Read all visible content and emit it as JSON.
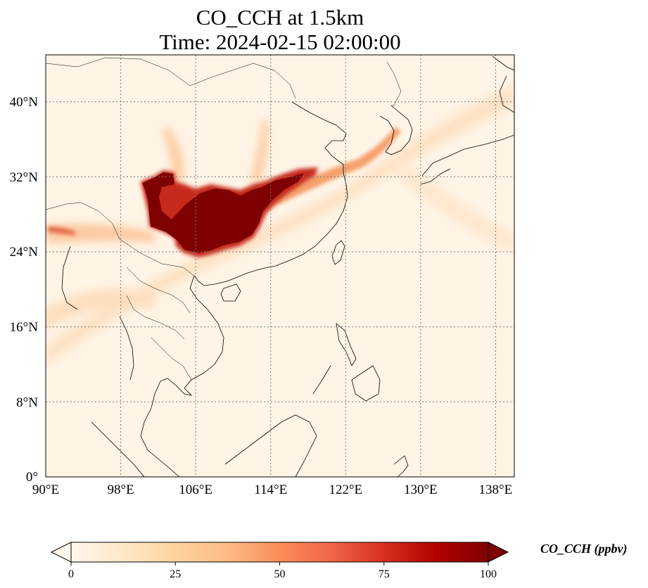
{
  "title": {
    "line1": "CO_CCH at 1.5km",
    "line2": "Time: 2024-02-15 02:00:00"
  },
  "map": {
    "extent": {
      "lon": [
        90,
        140
      ],
      "lat": [
        0,
        45
      ]
    },
    "lon_ticks": [
      "90°E",
      "98°E",
      "106°E",
      "114°E",
      "122°E",
      "130°E",
      "138°E"
    ],
    "lat_ticks": [
      "0°",
      "8°N",
      "16°N",
      "24°N",
      "32°N",
      "40°N"
    ],
    "gridlines": "dotted",
    "colormap": "OrRd"
  },
  "colorbar": {
    "label": "CO_CCH (ppbv)",
    "ticks": [
      "0",
      "25",
      "50",
      "75",
      "100"
    ],
    "range": [
      0,
      100
    ],
    "extend": "both",
    "colors": [
      "#fff7ec",
      "#fee8c8",
      "#fdd49e",
      "#fdbb84",
      "#fc8d59",
      "#ef6548",
      "#d7301f",
      "#b30000",
      "#7f0000"
    ]
  }
}
